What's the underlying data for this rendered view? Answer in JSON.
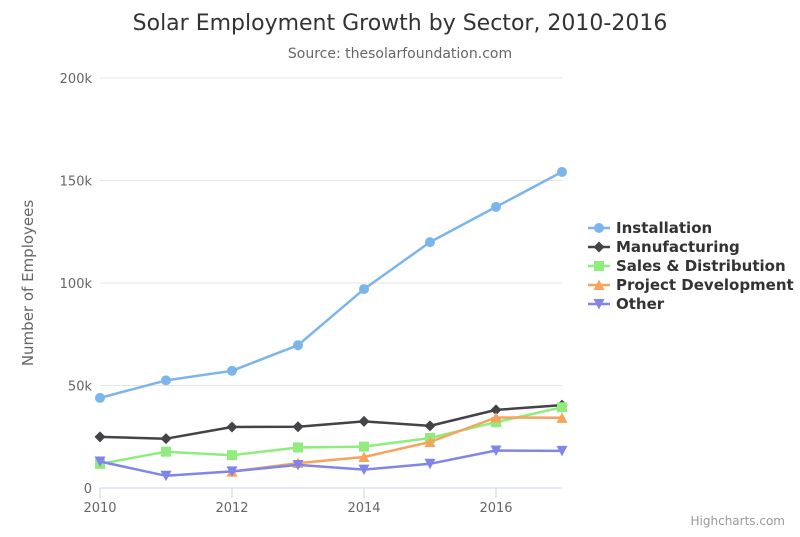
{
  "chart_data": {
    "type": "line",
    "title": "Solar Employment Growth by Sector, 2010-2016",
    "subtitle": "Source: thesolarfoundation.com",
    "xlabel": "",
    "ylabel": "Number of Employees",
    "xlim": [
      2010,
      2017
    ],
    "ylim": [
      0,
      200000
    ],
    "x_ticks": [
      2010,
      2012,
      2014,
      2016
    ],
    "y_ticks": [
      {
        "value": 0,
        "label": "0"
      },
      {
        "value": 50000,
        "label": "50k"
      },
      {
        "value": 100000,
        "label": "100k"
      },
      {
        "value": 150000,
        "label": "150k"
      },
      {
        "value": 200000,
        "label": "200k"
      }
    ],
    "grid": true,
    "legend_position": "right",
    "x": [
      2010,
      2011,
      2012,
      2013,
      2014,
      2015,
      2016,
      2017
    ],
    "series": [
      {
        "name": "Installation",
        "color": "#7cb5ec",
        "marker": "circle",
        "values": [
          43934,
          52503,
          57177,
          69658,
          97031,
          119931,
          137133,
          154175
        ]
      },
      {
        "name": "Manufacturing",
        "color": "#434348",
        "marker": "diamond",
        "values": [
          24916,
          24064,
          29742,
          29851,
          32490,
          30282,
          38121,
          40434
        ]
      },
      {
        "name": "Sales & Distribution",
        "color": "#90ed7d",
        "marker": "square",
        "values": [
          11744,
          17722,
          16005,
          19771,
          20185,
          24377,
          32147,
          39387
        ]
      },
      {
        "name": "Project Development",
        "color": "#f7a35c",
        "marker": "triangle",
        "values": [
          null,
          null,
          7988,
          12169,
          15112,
          22452,
          34400,
          34227
        ]
      },
      {
        "name": "Other",
        "color": "#8085e9",
        "marker": "triangle-down",
        "values": [
          12908,
          5948,
          8105,
          11248,
          8989,
          11816,
          18274,
          18111
        ]
      }
    ]
  },
  "credits": "Highcharts.com"
}
